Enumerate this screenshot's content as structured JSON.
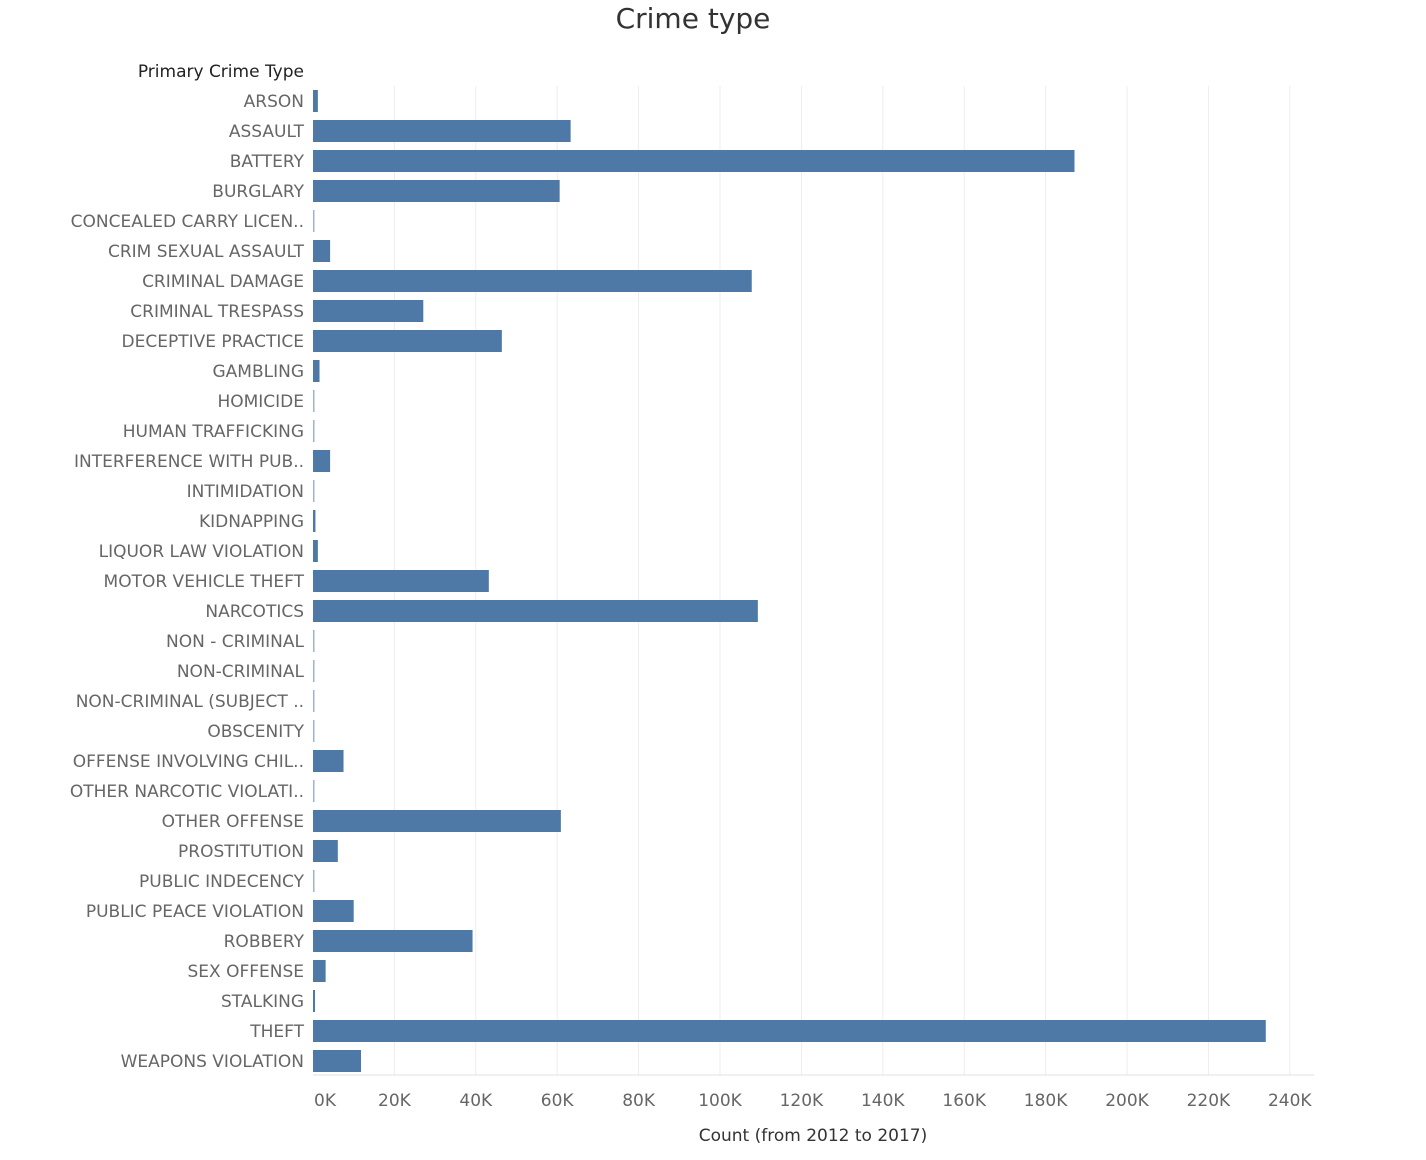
{
  "chart_data": {
    "type": "bar",
    "orientation": "horizontal",
    "title": "Crime type",
    "ylabel": "Primary Crime Type",
    "xlabel": "Count (from 2012 to 2017)",
    "xlim": [
      0,
      246000
    ],
    "x_ticks": [
      "0K",
      "20K",
      "40K",
      "60K",
      "80K",
      "100K",
      "120K",
      "140K",
      "160K",
      "180K",
      "200K",
      "220K",
      "240K"
    ],
    "grid": "vertical",
    "bar_color": "#4e79a7",
    "categories": [
      "ARSON",
      "ASSAULT",
      "BATTERY",
      "BURGLARY",
      "CONCEALED CARRY LICEN..",
      "CRIM SEXUAL ASSAULT",
      "CRIMINAL DAMAGE",
      "CRIMINAL TRESPASS",
      "DECEPTIVE PRACTICE",
      "GAMBLING",
      "HOMICIDE",
      "HUMAN TRAFFICKING",
      "INTERFERENCE WITH PUB..",
      "INTIMIDATION",
      "KIDNAPPING",
      "LIQUOR LAW VIOLATION",
      "MOTOR VEHICLE THEFT",
      "NARCOTICS",
      "NON - CRIMINAL",
      "NON-CRIMINAL",
      "NON-CRIMINAL (SUBJECT ..",
      "OBSCENITY",
      "OFFENSE INVOLVING CHIL..",
      "OTHER NARCOTIC VIOLATI..",
      "OTHER OFFENSE",
      "PROSTITUTION",
      "PUBLIC INDECENCY",
      "PUBLIC PEACE VIOLATION",
      "ROBBERY",
      "SEX OFFENSE",
      "STALKING",
      "THEFT",
      "WEAPONS VIOLATION"
    ],
    "values": [
      1200,
      63300,
      187100,
      60600,
      100,
      4200,
      107800,
      27100,
      46400,
      1600,
      200,
      100,
      4200,
      200,
      600,
      1200,
      43200,
      109300,
      100,
      100,
      100,
      100,
      7500,
      100,
      60900,
      6100,
      100,
      10000,
      39200,
      3100,
      500,
      234100,
      11800
    ]
  }
}
